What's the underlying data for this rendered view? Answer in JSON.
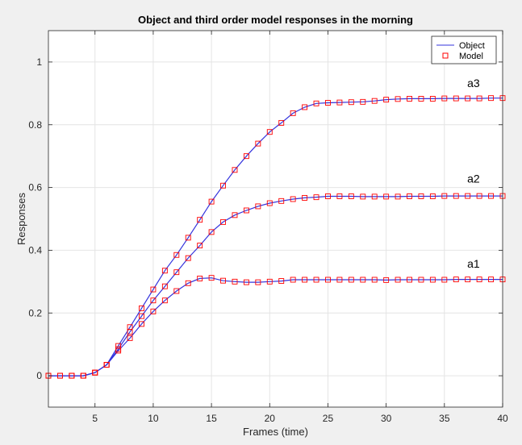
{
  "chart_data": {
    "type": "line",
    "title": "Object and third order model responses in the morning",
    "xlabel": "Frames (time)",
    "ylabel": "Responses",
    "xlim": [
      1,
      40
    ],
    "ylim": [
      -0.1,
      1.1
    ],
    "xticks": [
      5,
      10,
      15,
      20,
      25,
      30,
      35,
      40
    ],
    "xtick_labels": [
      "5",
      "10",
      "15",
      "20",
      "25",
      "30",
      "35",
      "40"
    ],
    "yticks": [
      0,
      0.2,
      0.4,
      0.6,
      0.8,
      1
    ],
    "ytick_labels": [
      "0",
      "0.2",
      "0.4",
      "0.6",
      "0.8",
      "1"
    ],
    "grid": true,
    "legend_position": "top-right",
    "legend": [
      {
        "label": "Object",
        "style": "line",
        "color": "#3333dd"
      },
      {
        "label": "Model",
        "style": "square-marker",
        "color": "#ff0000"
      }
    ],
    "annotations": [
      {
        "text": "a3",
        "x": 37.5,
        "y": 0.92
      },
      {
        "text": "a2",
        "x": 37.5,
        "y": 0.615
      },
      {
        "text": "a1",
        "x": 37.5,
        "y": 0.345
      }
    ],
    "x": [
      1,
      2,
      3,
      4,
      5,
      6,
      7,
      8,
      9,
      10,
      11,
      12,
      13,
      14,
      15,
      16,
      17,
      18,
      19,
      20,
      21,
      22,
      23,
      24,
      25,
      26,
      27,
      28,
      29,
      30,
      31,
      32,
      33,
      34,
      35,
      36,
      37,
      38,
      39,
      40
    ],
    "series": [
      {
        "label": "a1",
        "values": [
          0,
          0,
          0,
          0,
          0.01,
          0.035,
          0.08,
          0.12,
          0.165,
          0.205,
          0.24,
          0.27,
          0.295,
          0.31,
          0.312,
          0.303,
          0.3,
          0.298,
          0.298,
          0.3,
          0.302,
          0.306,
          0.306,
          0.306,
          0.306,
          0.306,
          0.306,
          0.306,
          0.306,
          0.305,
          0.306,
          0.306,
          0.306,
          0.306,
          0.306,
          0.307,
          0.307,
          0.307,
          0.307,
          0.307
        ]
      },
      {
        "label": "a2",
        "values": [
          0,
          0,
          0,
          0,
          0.01,
          0.035,
          0.085,
          0.14,
          0.19,
          0.24,
          0.285,
          0.33,
          0.375,
          0.415,
          0.458,
          0.49,
          0.512,
          0.527,
          0.54,
          0.55,
          0.557,
          0.563,
          0.567,
          0.569,
          0.572,
          0.572,
          0.572,
          0.571,
          0.571,
          0.571,
          0.571,
          0.572,
          0.572,
          0.572,
          0.573,
          0.573,
          0.573,
          0.573,
          0.573,
          0.573
        ]
      },
      {
        "label": "a3",
        "values": [
          0,
          0,
          0,
          0,
          0.01,
          0.035,
          0.095,
          0.155,
          0.215,
          0.275,
          0.335,
          0.385,
          0.44,
          0.497,
          0.555,
          0.606,
          0.656,
          0.7,
          0.74,
          0.777,
          0.806,
          0.837,
          0.856,
          0.868,
          0.87,
          0.871,
          0.872,
          0.873,
          0.876,
          0.88,
          0.882,
          0.883,
          0.883,
          0.883,
          0.884,
          0.884,
          0.884,
          0.884,
          0.885,
          0.885
        ]
      }
    ],
    "colors": {
      "object_line": "#3333dd",
      "model_marker": "#ff0000",
      "grid": "#e4e4e4",
      "axes_background": "#ffffff",
      "figure_background": "#f0f0f0"
    }
  }
}
